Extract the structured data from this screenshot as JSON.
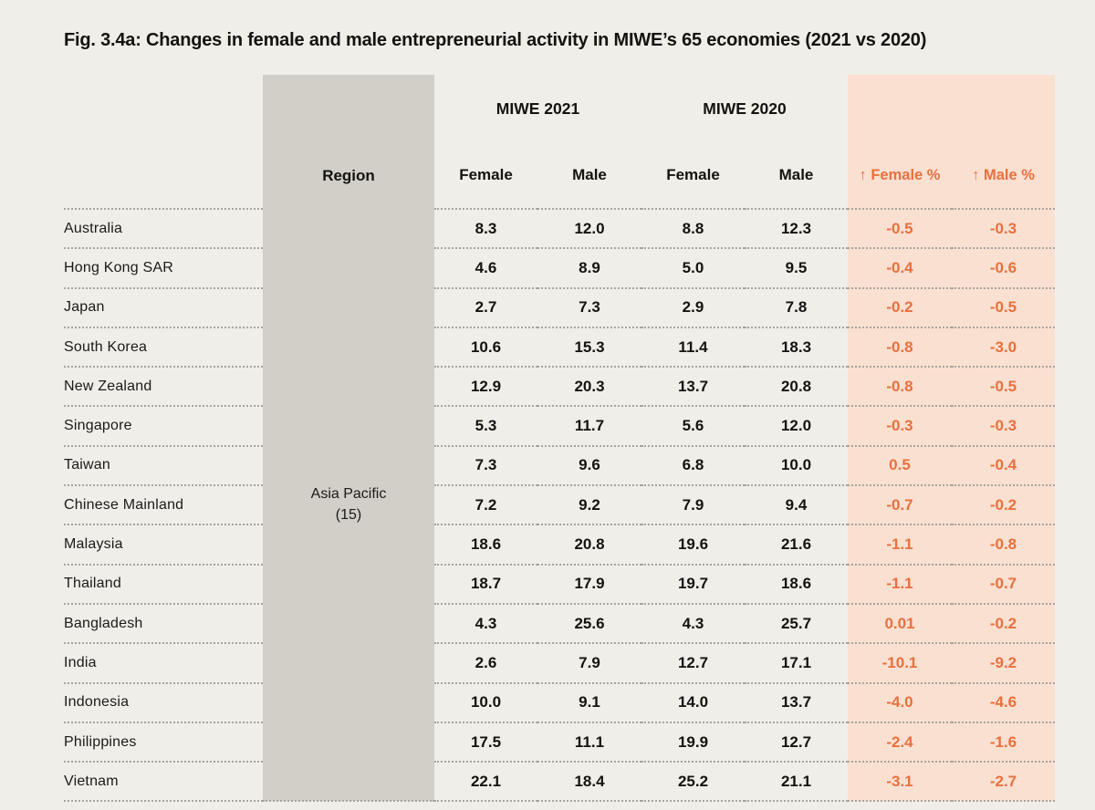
{
  "chart_data": {
    "type": "table",
    "title": "Fig. 3.4a: Changes in female and male entrepreneurial activity in MIWE’s 65 economies (2021 vs 2020)",
    "group_headers": [
      {
        "label": "MIWE 2021",
        "span": 2
      },
      {
        "label": "MIWE 2020",
        "span": 2
      }
    ],
    "columns": [
      "Region",
      "Female",
      "Male",
      "Female",
      "Male",
      "↑ Female %",
      "↑ Male %"
    ],
    "region_group": {
      "label": "Asia Pacific",
      "count": "(15)",
      "rows_spanned": 15
    },
    "rows": [
      [
        "Australia",
        "8.3",
        "12.0",
        "8.8",
        "12.3",
        "-0.5",
        "-0.3"
      ],
      [
        "Hong Kong SAR",
        "4.6",
        "8.9",
        "5.0",
        "9.5",
        "-0.4",
        "-0.6"
      ],
      [
        "Japan",
        "2.7",
        "7.3",
        "2.9",
        "7.8",
        "-0.2",
        "-0.5"
      ],
      [
        "South Korea",
        "10.6",
        "15.3",
        "11.4",
        "18.3",
        "-0.8",
        "-3.0"
      ],
      [
        "New Zealand",
        "12.9",
        "20.3",
        "13.7",
        "20.8",
        "-0.8",
        "-0.5"
      ],
      [
        "Singapore",
        "5.3",
        "11.7",
        "5.6",
        "12.0",
        "-0.3",
        "-0.3"
      ],
      [
        "Taiwan",
        "7.3",
        "9.6",
        "6.8",
        "10.0",
        "0.5",
        "-0.4"
      ],
      [
        "Chinese Mainland",
        "7.2",
        "9.2",
        "7.9",
        "9.4",
        "-0.7",
        "-0.2"
      ],
      [
        "Malaysia",
        "18.6",
        "20.8",
        "19.6",
        "21.6",
        "-1.1",
        "-0.8"
      ],
      [
        "Thailand",
        "18.7",
        "17.9",
        "19.7",
        "18.6",
        "-1.1",
        "-0.7"
      ],
      [
        "Bangladesh",
        "4.3",
        "25.6",
        "4.3",
        "25.7",
        "0.01",
        "-0.2"
      ],
      [
        "India",
        "2.6",
        "7.9",
        "12.7",
        "17.1",
        "-10.1",
        "-9.2"
      ],
      [
        "Indonesia",
        "10.0",
        "9.1",
        "14.0",
        "13.7",
        "-4.0",
        "-4.6"
      ],
      [
        "Philippines",
        "17.5",
        "11.1",
        "19.9",
        "12.7",
        "-2.4",
        "-1.6"
      ],
      [
        "Vietnam",
        "22.1",
        "18.4",
        "25.2",
        "21.1",
        "-3.1",
        "-2.7"
      ]
    ],
    "layout_hints": {
      "region_column_bg": "#d2cfc8",
      "change_columns_bg": "#fae0d1",
      "accent_orange": "#e8703d",
      "page_bg": "#f0eee8",
      "row_separator": "dotted"
    }
  }
}
